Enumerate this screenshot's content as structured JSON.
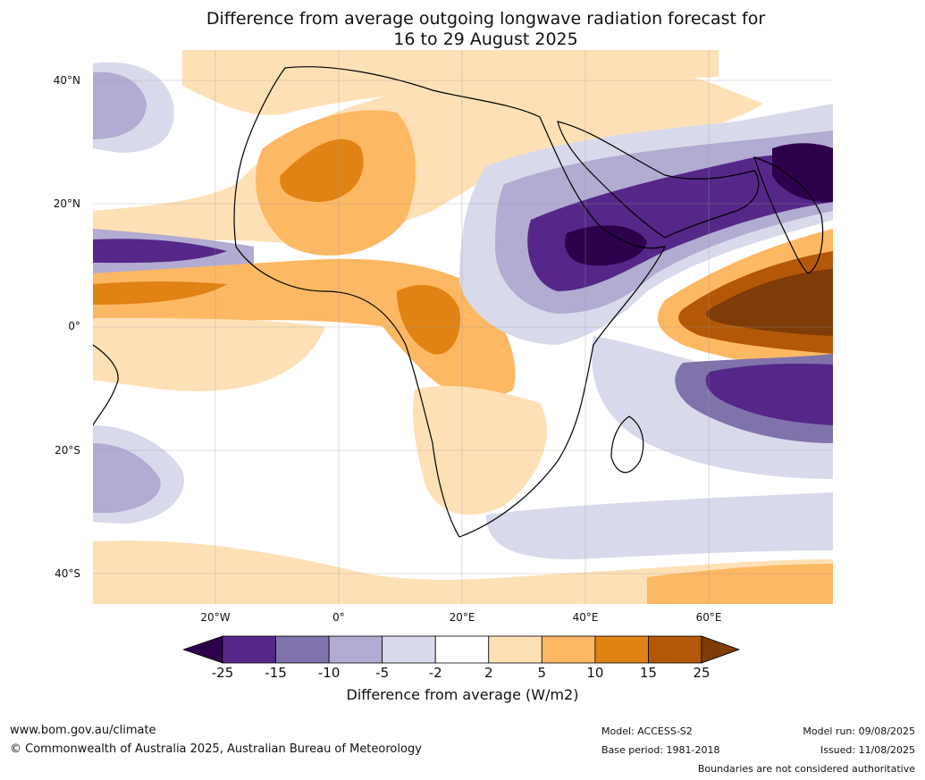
{
  "title_line1": "Difference from average outgoing longwave radiation forecast for",
  "title_line2": "16 to 29 August 2025",
  "lat_labels": [
    "40°N",
    "20°N",
    "0°",
    "20°S",
    "40°S"
  ],
  "lon_labels": [
    "20°W",
    "0°",
    "20°E",
    "40°E",
    "60°E"
  ],
  "colorbar": {
    "ticks": [
      "-25",
      "-15",
      "-10",
      "-5",
      "-2",
      "2",
      "5",
      "10",
      "15",
      "25"
    ],
    "colors": [
      "#2d004b",
      "#542788",
      "#8073ac",
      "#b2abd2",
      "#d8daeb",
      "#ffffff",
      "#fee0b6",
      "#fdb863",
      "#e08214",
      "#b35806",
      "#7f3b08"
    ],
    "label": "Difference from average (W/m2)"
  },
  "footer": {
    "url": "www.bom.gov.au/climate",
    "copyright": "© Commonwealth of Australia 2025, Australian Bureau of Meteorology",
    "model": "Model: ACCESS-S2",
    "base_period": "Base period: 1981-2018",
    "model_run": "Model run: 09/08/2025",
    "issued": "Issued: 11/08/2025",
    "disclaimer": "Boundaries are not considered authoritative"
  }
}
